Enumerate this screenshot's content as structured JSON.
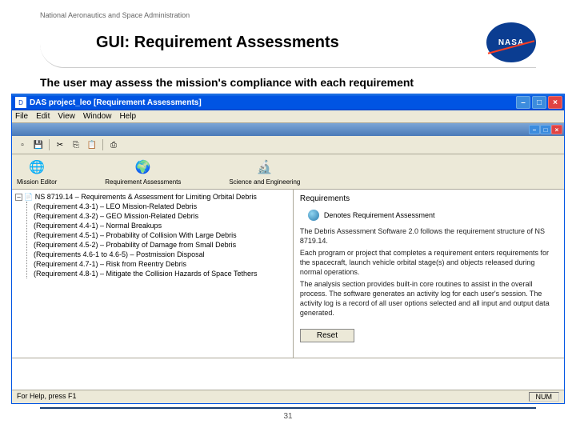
{
  "header": {
    "org": "National Aeronautics and Space Administration",
    "title": "GUI: Requirement Assessments",
    "logo_text": "NASA"
  },
  "description": "The user may assess the mission's compliance with each requirement",
  "window": {
    "title": "DAS   project_leo   [Requirement Assessments]",
    "menus": [
      "File",
      "Edit",
      "View",
      "Window",
      "Help"
    ],
    "modules": [
      {
        "label": "Mission Editor",
        "icon": "🌐"
      },
      {
        "label": "Requirement Assessments",
        "icon": "🌍"
      },
      {
        "label": "Science and Engineering",
        "icon": "🔬"
      }
    ],
    "tree": {
      "root": "NS 8719.14 – Requirements & Assessment for Limiting Orbital Debris",
      "items": [
        "(Requirement 4.3-1) – LEO Mission-Related Debris",
        "(Requirement 4.3-2) – GEO Mission-Related Debris",
        "(Requirement 4.4-1) – Normal Breakups",
        "(Requirement 4.5-1) – Probability of Collision With Large Debris",
        "(Requirement 4.5-2) – Probability of Damage from Small Debris",
        "(Requirements 4.6-1 to 4.6-5) – Postmission Disposal",
        "(Requirement 4.7-1) – Risk from Reentry Debris",
        "(Requirement 4.8-1) – Mitigate the Collision Hazards of Space Tethers"
      ]
    },
    "right": {
      "heading": "Requirements",
      "legend": "Denotes Requirement Assessment",
      "paragraphs": [
        "The Debris Assessment Software 2.0 follows the requirement structure of NS 8719.14.",
        "Each program or project that completes a requirement enters requirements for the spacecraft, launch vehicle orbital stage(s) and objects released during normal operations.",
        "The analysis section provides built-in core routines to assist in the overall process. The software generates an activity log for each user's session. The activity log is a record of all user options selected and all input and output data generated."
      ],
      "reset_label": "Reset"
    },
    "status_left": "For Help, press F1",
    "status_right": "NUM"
  },
  "footer": {
    "page_number": "31"
  },
  "colors": {
    "xp_blue": "#0054e3",
    "xp_bg": "#ece9d8",
    "nasa_blue": "#0b3d91",
    "nasa_red": "#fc3d21"
  }
}
